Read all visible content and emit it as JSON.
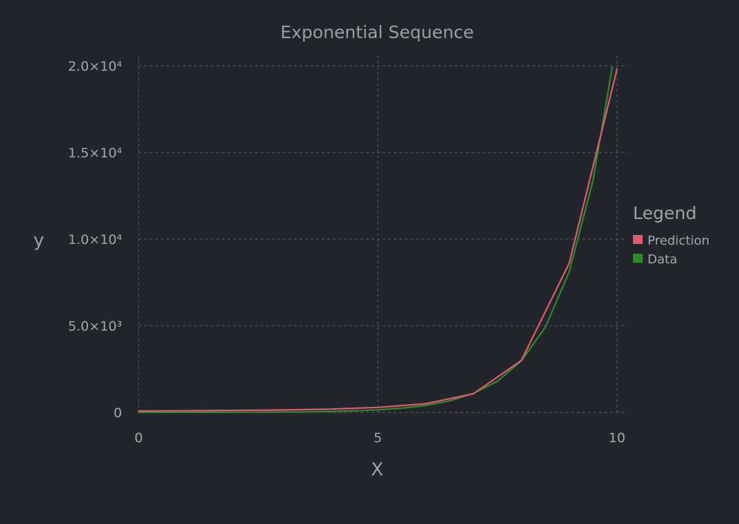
{
  "chart_data": {
    "type": "line",
    "title": "Exponential Sequence",
    "xlabel": "X",
    "ylabel": "y",
    "xlim": [
      0,
      10
    ],
    "ylim": [
      0,
      20000
    ],
    "grid": true,
    "x_ticks": [
      {
        "value": 0,
        "label": "0"
      },
      {
        "value": 5,
        "label": "5"
      },
      {
        "value": 10,
        "label": "10"
      }
    ],
    "y_ticks": [
      {
        "value": 0,
        "label": "0"
      },
      {
        "value": 5000,
        "label": "5.0×10³"
      },
      {
        "value": 10000,
        "label": "1.0×10⁴"
      },
      {
        "value": 15000,
        "label": "1.5×10⁴"
      },
      {
        "value": 20000,
        "label": "2.0×10⁴"
      }
    ],
    "legend": {
      "title": "Legend",
      "position": "right"
    },
    "series": [
      {
        "name": "Prediction",
        "color": "#e45b6f",
        "x": [
          0,
          1,
          2,
          3,
          4,
          5,
          6,
          7,
          8,
          9,
          10
        ],
        "y": [
          80,
          95,
          115,
          140,
          190,
          290,
          500,
          1080,
          3000,
          8600,
          19800
        ]
      },
      {
        "name": "Data",
        "color": "#2e8b2a",
        "x": [
          0,
          0.5,
          1,
          1.5,
          2,
          2.5,
          3,
          3.5,
          4,
          4.5,
          5,
          5.5,
          6,
          6.5,
          7,
          7.5,
          8,
          8.5,
          9,
          9.5,
          9.9
        ],
        "y": [
          1,
          2,
          3,
          4,
          7,
          12,
          20,
          33,
          55,
          90,
          148,
          245,
          400,
          665,
          1100,
          1800,
          2980,
          4900,
          8100,
          13400,
          19900
        ]
      }
    ]
  }
}
